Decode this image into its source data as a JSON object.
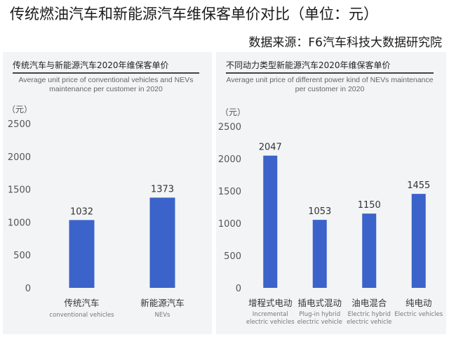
{
  "page": {
    "title": "传统燃油汽车和新能源汽车维保客单价对比（单位：元）",
    "source": "数据来源：F6汽车科技大数据研究院"
  },
  "colors": {
    "bar": "#3b63c9",
    "axis_text": "#555555",
    "panel_bg": "#f3f4f6"
  },
  "chart_data": [
    {
      "type": "bar",
      "title": "传统汽车与新能源汽车2020年维保客单价",
      "subtitle": "Average unit price of conventional vehicles and NEVs maintenance per customer in 2020",
      "ylabel": "（元）",
      "ylim": [
        0,
        2500
      ],
      "yticks": [
        0,
        500,
        1000,
        1500,
        2000,
        2500
      ],
      "categories": [
        "传统汽车",
        "新能源汽车"
      ],
      "categories_en": [
        "conventional vehicles",
        "NEVs"
      ],
      "values": [
        1032,
        1373
      ],
      "grid": false
    },
    {
      "type": "bar",
      "title": "不同动力类型新能源汽车2020年维保客单价",
      "subtitle": "Average unit price of different power kind of NEVs maintenance per customer in 2020",
      "ylabel": "（元）",
      "ylim": [
        0,
        2500
      ],
      "yticks": [
        0,
        500,
        1000,
        1500,
        2000,
        2500
      ],
      "categories": [
        "增程式电动",
        "插电式混动",
        "油电混合",
        "纯电动"
      ],
      "categories_en": [
        "Incremental electric vehicles",
        "Plug-in hybrid electric vehicle",
        "Electric hybrid electric vehicle",
        "Electric vehicles"
      ],
      "values": [
        2047,
        1053,
        1150,
        1455
      ],
      "grid": false
    }
  ]
}
